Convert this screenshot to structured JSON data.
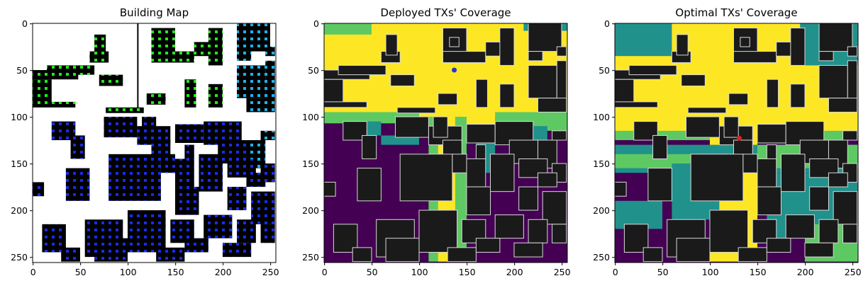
{
  "chart_data": [
    {
      "type": "heatmap",
      "title": "Building Map",
      "xlim": [
        0,
        255
      ],
      "ylim": [
        255,
        0
      ],
      "xticks": [
        0,
        50,
        100,
        150,
        200,
        250
      ],
      "yticks": [
        0,
        50,
        100,
        150,
        200,
        250
      ],
      "legend": "none",
      "colors": {
        "background": "#ffffff",
        "building": "#000000",
        "tx_green": "#22e81c",
        "tx_cyan": "#19b4ec",
        "tx_blue": "#1a2ce6"
      }
    },
    {
      "type": "heatmap",
      "title": "Deployed TXs' Coverage",
      "xlim": [
        0,
        255
      ],
      "ylim": [
        255,
        0
      ],
      "xticks": [
        0,
        50,
        100,
        150,
        200,
        250
      ],
      "yticks": [
        0,
        50,
        100,
        150,
        200,
        250
      ],
      "legend": "none",
      "tx_positions": [
        {
          "x": 137,
          "y": 50
        }
      ],
      "colors": {
        "no_coverage": "#440154",
        "low": "#21918c",
        "mid": "#5ec962",
        "high": "#fde725",
        "building": "#1a1a1a",
        "tx": "#2233dd"
      }
    },
    {
      "type": "heatmap",
      "title": "Optimal TXs' Coverage",
      "xlim": [
        0,
        255
      ],
      "ylim": [
        255,
        0
      ],
      "xticks": [
        0,
        50,
        100,
        150,
        200,
        250
      ],
      "yticks": [
        0,
        50,
        100,
        150,
        200,
        250
      ],
      "legend": "none",
      "tx_positions": [
        {
          "x": 131,
          "y": 123
        }
      ],
      "colors": {
        "no_coverage": "#440154",
        "low": "#21918c",
        "mid": "#5ec962",
        "high": "#fde725",
        "building": "#1a1a1a",
        "tx": "#e02020"
      }
    }
  ]
}
